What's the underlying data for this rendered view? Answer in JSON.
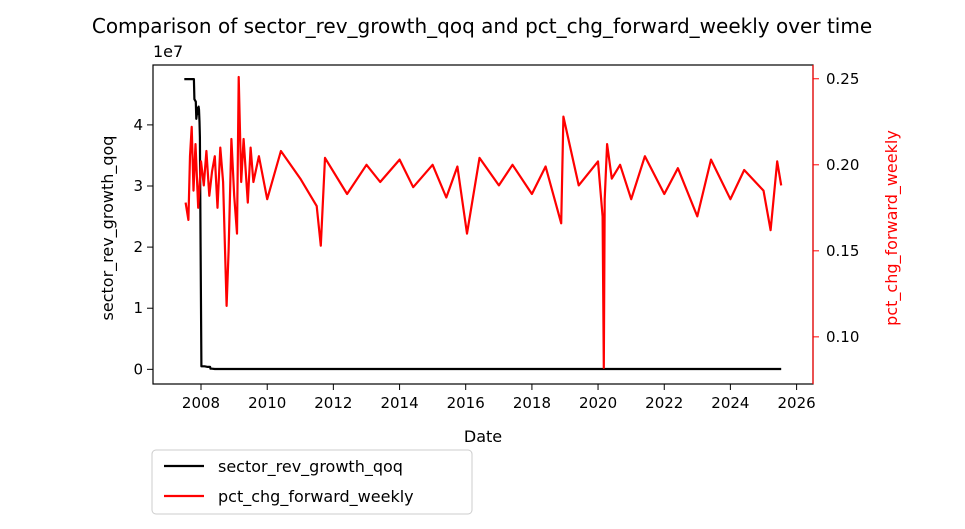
{
  "chart_data": {
    "type": "line",
    "title": "Comparison of sector_rev_growth_qoq and pct_chg_forward_weekly over time",
    "xlabel": "Date",
    "x_ticks": [
      "2008",
      "2010",
      "2012",
      "2014",
      "2016",
      "2018",
      "2020",
      "2022",
      "2024",
      "2026"
    ],
    "x_range": [
      "2006-07-20",
      "2026-07-01"
    ],
    "left_axis": {
      "label": "sector_rev_growth_qoq",
      "offset_text": "1e7",
      "ticks": [
        0,
        1,
        2,
        3,
        4
      ],
      "ylim": [
        -0.24,
        4.98
      ],
      "color": "#000000"
    },
    "right_axis": {
      "label": "pct_chg_forward_weekly",
      "ticks": [
        "0.10",
        "0.15",
        "0.20",
        "0.25"
      ],
      "ylim": [
        0.0726,
        0.258
      ],
      "color": "#ff0000"
    },
    "legend": {
      "placement": "below-left",
      "entries": [
        "sector_rev_growth_qoq",
        "pct_chg_forward_weekly"
      ]
    },
    "grid": false,
    "series": [
      {
        "name": "sector_rev_growth_qoq",
        "axis": "left",
        "color": "#000000",
        "x": [
          "2007-07-01",
          "2007-10-15",
          "2007-10-20",
          "2007-11-05",
          "2007-11-10",
          "2007-11-25",
          "2007-11-30",
          "2007-12-05",
          "2007-12-10",
          "2007-12-15",
          "2007-12-20",
          "2007-12-28",
          "2008-01-05",
          "2008-01-20",
          "2008-02-10",
          "2008-03-15",
          "2008-04-10",
          "2008-04-15",
          "2008-05-01",
          "2008-06-01",
          "2010-01-01",
          "2015-01-01",
          "2020-01-01",
          "2025-07-15"
        ],
        "values": [
          4.75,
          4.75,
          4.42,
          4.38,
          4.1,
          4.28,
          4.18,
          4.3,
          4.25,
          4.05,
          3.8,
          2.0,
          0.05,
          0.05,
          0.05,
          0.04,
          0.04,
          0.01,
          0.01,
          0.005,
          0.005,
          0.005,
          0.005,
          0.005
        ]
      },
      {
        "name": "pct_chg_forward_weekly",
        "axis": "right",
        "color": "#ff0000",
        "x": [
          "2007-07-15",
          "2007-08-15",
          "2007-09-01",
          "2007-09-20",
          "2007-10-10",
          "2007-11-01",
          "2007-12-01",
          "2008-01-01",
          "2008-02-01",
          "2008-03-01",
          "2008-04-01",
          "2008-05-01",
          "2008-06-01",
          "2008-07-01",
          "2008-08-01",
          "2008-09-01",
          "2008-10-10",
          "2008-11-01",
          "2008-12-01",
          "2009-01-01",
          "2009-02-01",
          "2009-02-20",
          "2009-03-20",
          "2009-04-15",
          "2009-06-01",
          "2009-07-01",
          "2009-08-01",
          "2009-10-01",
          "2010-01-01",
          "2010-06-01",
          "2011-01-01",
          "2011-07-01",
          "2011-08-15",
          "2011-10-01",
          "2012-06-01",
          "2013-01-01",
          "2013-06-01",
          "2014-01-01",
          "2014-06-01",
          "2015-01-01",
          "2015-06-01",
          "2015-10-01",
          "2016-01-15",
          "2016-06-01",
          "2017-01-01",
          "2017-06-01",
          "2018-01-01",
          "2018-06-01",
          "2018-11-20",
          "2018-12-15",
          "2019-06-01",
          "2020-01-01",
          "2020-02-20",
          "2020-03-05",
          "2020-03-15",
          "2020-04-10",
          "2020-06-01",
          "2020-09-01",
          "2021-01-01",
          "2021-06-01",
          "2022-01-01",
          "2022-06-01",
          "2023-01-01",
          "2023-06-01",
          "2024-01-01",
          "2024-06-01",
          "2025-01-01",
          "2025-03-20",
          "2025-06-01",
          "2025-07-15"
        ],
        "values": [
          0.178,
          0.168,
          0.205,
          0.222,
          0.185,
          0.212,
          0.175,
          0.202,
          0.188,
          0.208,
          0.182,
          0.196,
          0.205,
          0.175,
          0.21,
          0.19,
          0.118,
          0.15,
          0.215,
          0.182,
          0.16,
          0.251,
          0.19,
          0.215,
          0.178,
          0.21,
          0.19,
          0.205,
          0.18,
          0.208,
          0.192,
          0.176,
          0.153,
          0.204,
          0.183,
          0.2,
          0.19,
          0.203,
          0.187,
          0.2,
          0.181,
          0.199,
          0.16,
          0.204,
          0.188,
          0.2,
          0.183,
          0.199,
          0.166,
          0.228,
          0.188,
          0.202,
          0.17,
          0.082,
          0.18,
          0.212,
          0.192,
          0.2,
          0.18,
          0.205,
          0.183,
          0.198,
          0.17,
          0.203,
          0.18,
          0.197,
          0.185,
          0.162,
          0.202,
          0.188
        ]
      }
    ]
  }
}
